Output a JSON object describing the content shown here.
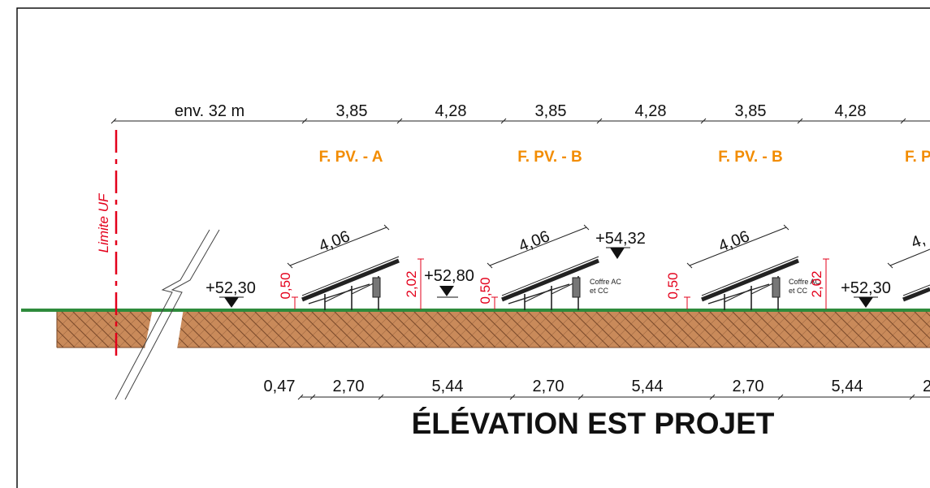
{
  "colors": {
    "frame": "#000000",
    "grass": "#2e8b3c",
    "soil": "#c98a5a",
    "soil_hatch": "#7a4a2a",
    "boundary": "#e3001b",
    "panel_label": "#f28c00",
    "red_dim": "#e3001b"
  },
  "top_dimensions": {
    "first": "env. 32 m",
    "a": "3,85",
    "b": "4,28",
    "c": "3,85",
    "d": "4,28",
    "e": "3,85",
    "f": "4,28"
  },
  "field_labels": {
    "a": "F. PV. - A",
    "b1": "F. PV. - B",
    "b2": "F. PV. - B",
    "cut": "F. P"
  },
  "boundary_label": "Limite UF",
  "panel_lengths": {
    "p1": "4,06",
    "p2": "4,06",
    "p3": "4,06",
    "cut": "4,"
  },
  "levels": {
    "l1": "+52,30",
    "l2": "+52,80",
    "l3": "+54,32",
    "l4": "+52,30"
  },
  "heights": {
    "low1": "0,50",
    "high1": "2,02",
    "low2": "0,50",
    "low3": "0,50",
    "high2": "2,02"
  },
  "cabinet_label": {
    "line1": "Coffre AC",
    "line2": "et CC"
  },
  "bottom_dimensions": {
    "d0": "0,47",
    "d1": "2,70",
    "d2": "5,44",
    "d3": "2,70",
    "d4": "5,44",
    "d5": "2,70",
    "d6": "5,44",
    "cut": "2"
  },
  "title": "ÉLÉVATION EST PROJET"
}
